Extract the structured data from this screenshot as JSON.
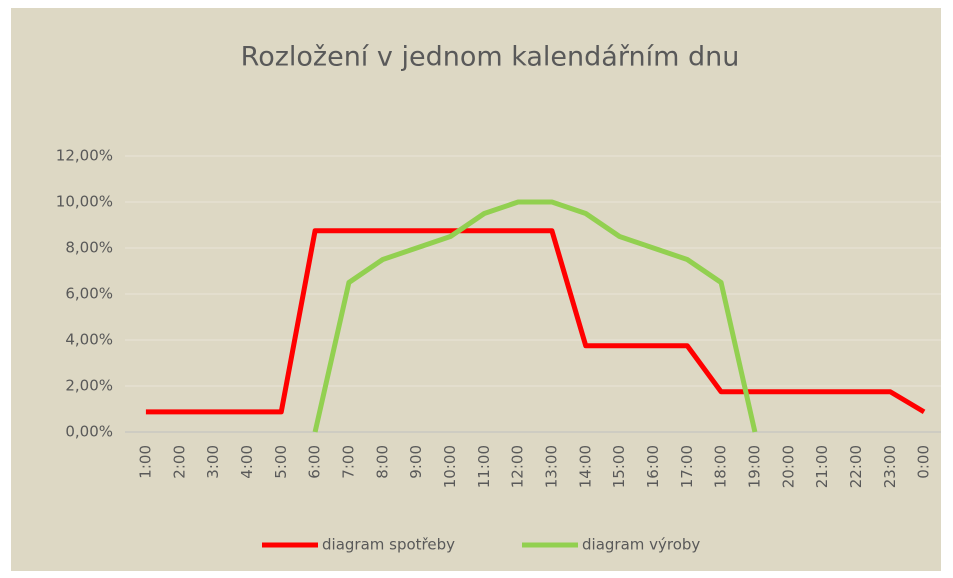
{
  "chart_data": {
    "type": "line",
    "title": "Rozložení v jednom kalendářním dnu",
    "categories": [
      "1:00",
      "2:00",
      "3:00",
      "4:00",
      "5:00",
      "6:00",
      "7:00",
      "8:00",
      "9:00",
      "10:00",
      "11:00",
      "12:00",
      "13:00",
      "14:00",
      "15:00",
      "16:00",
      "17:00",
      "18:00",
      "19:00",
      "20:00",
      "21:00",
      "22:00",
      "23:00",
      "0:00"
    ],
    "series": [
      {
        "name": "diagram spotřeby",
        "color": "#ff0000",
        "values": [
          0.875,
          0.875,
          0.875,
          0.875,
          0.875,
          8.75,
          8.75,
          8.75,
          8.75,
          8.75,
          8.75,
          8.75,
          8.75,
          3.75,
          3.75,
          3.75,
          3.75,
          1.75,
          1.75,
          1.75,
          1.75,
          1.75,
          1.75,
          0.875
        ]
      },
      {
        "name": "diagram výroby",
        "color": "#92d050",
        "values": [
          null,
          null,
          null,
          null,
          null,
          0,
          6.5,
          7.5,
          8,
          8.5,
          9.5,
          10,
          10,
          9.5,
          8.5,
          8,
          7.5,
          6.5,
          0,
          null,
          null,
          null,
          null,
          null
        ]
      }
    ],
    "ylim": [
      0,
      12
    ],
    "yticks": [
      {
        "value": 0,
        "label": "0,00%"
      },
      {
        "value": 2,
        "label": "2,00%"
      },
      {
        "value": 4,
        "label": "4,00%"
      },
      {
        "value": 6,
        "label": "6,00%"
      },
      {
        "value": 8,
        "label": "8,00%"
      },
      {
        "value": 10,
        "label": "10,00%"
      },
      {
        "value": 12,
        "label": "12,00%"
      }
    ],
    "grid": true,
    "legend": "bottom"
  }
}
